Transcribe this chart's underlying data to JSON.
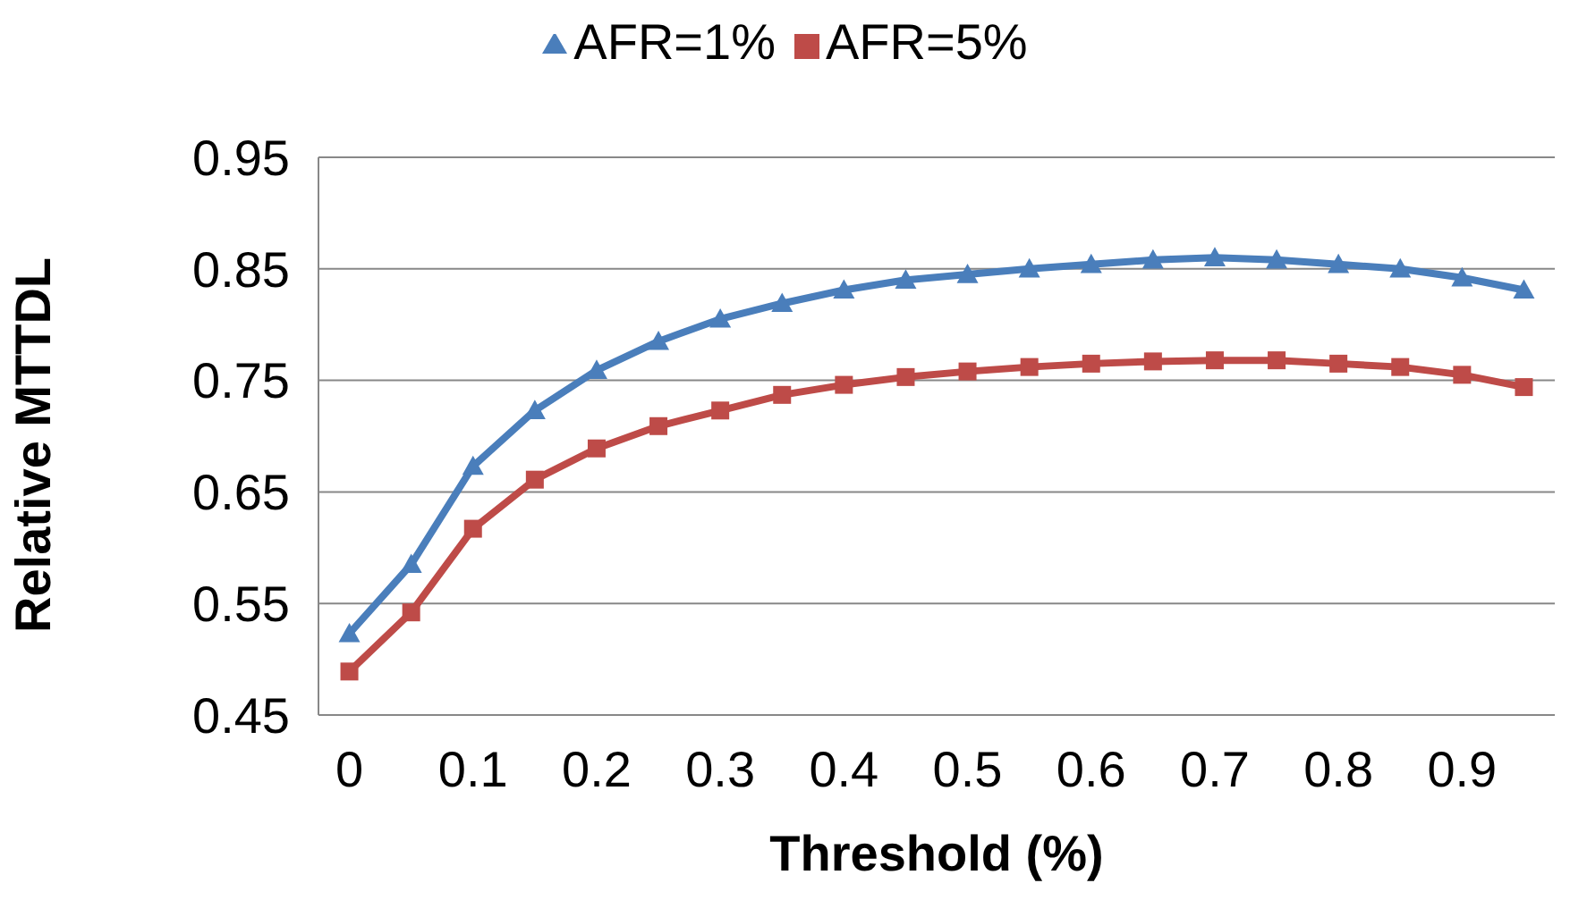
{
  "chart_data": {
    "type": "line",
    "xlabel": "Threshold (%)",
    "ylabel": "Relative MTTDL",
    "x": [
      0,
      0.05,
      0.1,
      0.15,
      0.2,
      0.25,
      0.3,
      0.35,
      0.4,
      0.45,
      0.5,
      0.55,
      0.6,
      0.65,
      0.7,
      0.75,
      0.8,
      0.85,
      0.9,
      0.95
    ],
    "series": [
      {
        "name": "AFR=1%",
        "color": "#4a7ebb",
        "marker": "triangle",
        "values": [
          0.523,
          0.585,
          0.673,
          0.723,
          0.759,
          0.785,
          0.805,
          0.819,
          0.831,
          0.84,
          0.845,
          0.85,
          0.854,
          0.858,
          0.86,
          0.858,
          0.854,
          0.85,
          0.842,
          0.831
        ]
      },
      {
        "name": "AFR=5%",
        "color": "#be4b48",
        "marker": "square",
        "values": [
          0.489,
          0.542,
          0.617,
          0.661,
          0.689,
          0.709,
          0.723,
          0.737,
          0.746,
          0.753,
          0.758,
          0.762,
          0.765,
          0.767,
          0.768,
          0.768,
          0.765,
          0.762,
          0.755,
          0.744
        ]
      }
    ],
    "xlim": [
      -0.025,
      0.975
    ],
    "xticks": [
      0,
      0.1,
      0.2,
      0.3,
      0.4,
      0.5,
      0.6,
      0.7,
      0.8,
      0.9
    ],
    "ylim": [
      0.45,
      0.95
    ],
    "yticks": [
      0.45,
      0.55,
      0.65,
      0.75,
      0.85,
      0.95
    ],
    "grid": "y",
    "legend": "top",
    "line_style": "solid"
  }
}
